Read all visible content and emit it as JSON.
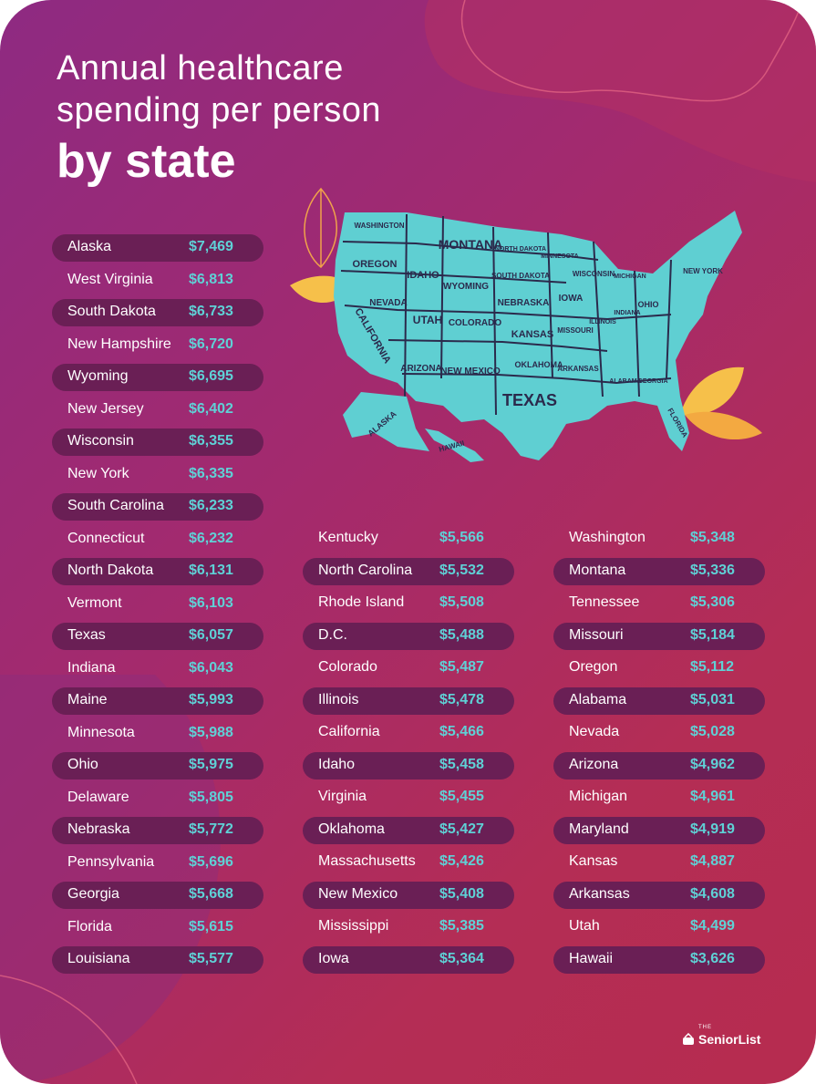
{
  "title": {
    "line1": "Annual healthcare",
    "line2": "spending per person",
    "line3": "by state"
  },
  "logo": {
    "brand": "SeniorList",
    "small": "THE"
  },
  "colors": {
    "value": "#5fd1d6",
    "row_shade": "#6a1f55",
    "map": "#5fcfd2"
  },
  "map_labels": [
    "WASHINGTON",
    "MONTANA",
    "NORTH DAKOTA",
    "MINNESOTA",
    "OREGON",
    "IDAHO",
    "SOUTH DAKOTA",
    "WISCONSIN",
    "MICHIGAN",
    "NEW YORK",
    "WYOMING",
    "NEBRASKA",
    "IOWA",
    "NEVADA",
    "UTAH",
    "COLORADO",
    "KANSAS",
    "MISSOURI",
    "ILLINOIS",
    "INDIANA",
    "OHIO",
    "CALIFORNIA",
    "ARIZONA",
    "NEW MEXICO",
    "OKLAHOMA",
    "ARKANSAS",
    "TEXAS",
    "ALABAMA",
    "GEORGIA",
    "FLORIDA",
    "ALASKA",
    "HAWAII"
  ],
  "chart_data": {
    "type": "table",
    "unit": "$",
    "categories": [
      "Alaska",
      "West Virginia",
      "South Dakota",
      "New Hampshire",
      "Wyoming",
      "New Jersey",
      "Wisconsin",
      "New York",
      "South Carolina",
      "Connecticut",
      "North Dakota",
      "Vermont",
      "Texas",
      "Indiana",
      "Maine",
      "Minnesota",
      "Ohio",
      "Delaware",
      "Nebraska",
      "Pennsylvania",
      "Georgia",
      "Florida",
      "Louisiana",
      "Kentucky",
      "North Carolina",
      "Rhode Island",
      "D.C.",
      "Colorado",
      "Illinois",
      "California",
      "Idaho",
      "Virginia",
      "Oklahoma",
      "Massachusetts",
      "New Mexico",
      "Mississippi",
      "Iowa",
      "Washington",
      "Montana",
      "Tennessee",
      "Missouri",
      "Oregon",
      "Alabama",
      "Nevada",
      "Arizona",
      "Michigan",
      "Maryland",
      "Kansas",
      "Arkansas",
      "Utah",
      "Hawaii"
    ],
    "values": [
      7469,
      6813,
      6733,
      6720,
      6695,
      6402,
      6355,
      6335,
      6233,
      6232,
      6131,
      6103,
      6057,
      6043,
      5993,
      5988,
      5975,
      5805,
      5772,
      5696,
      5668,
      5615,
      5577,
      5566,
      5532,
      5508,
      5488,
      5487,
      5478,
      5466,
      5458,
      5455,
      5427,
      5426,
      5408,
      5385,
      5364,
      5348,
      5336,
      5306,
      5184,
      5112,
      5031,
      5028,
      4962,
      4961,
      4919,
      4887,
      4608,
      4499,
      3626
    ],
    "labels": [
      "$7,469",
      "$6,813",
      "$6,733",
      "$6,720",
      "$6,695",
      "$6,402",
      "$6,355",
      "$6,335",
      "$6,233",
      "$6,232",
      "$6,131",
      "$6,103",
      "$6,057",
      "$6,043",
      "$5,993",
      "$5,988",
      "$5,975",
      "$5,805",
      "$5,772",
      "$5,696",
      "$5,668",
      "$5,615",
      "$5,577",
      "$5,566",
      "$5,532",
      "$5,508",
      "$5,488",
      "$5,487",
      "$5,478",
      "$5,466",
      "$5,458",
      "$5,455",
      "$5,427",
      "$5,426",
      "$5,408",
      "$5,385",
      "$5,364",
      "$5,348",
      "$5,336",
      "$5,306",
      "$5,184",
      "$5,112",
      "$5,031",
      "$5,028",
      "$4,962",
      "$4,961",
      "$4,919",
      "$4,887",
      "$4,608",
      "$4,499",
      "$3,626"
    ]
  }
}
